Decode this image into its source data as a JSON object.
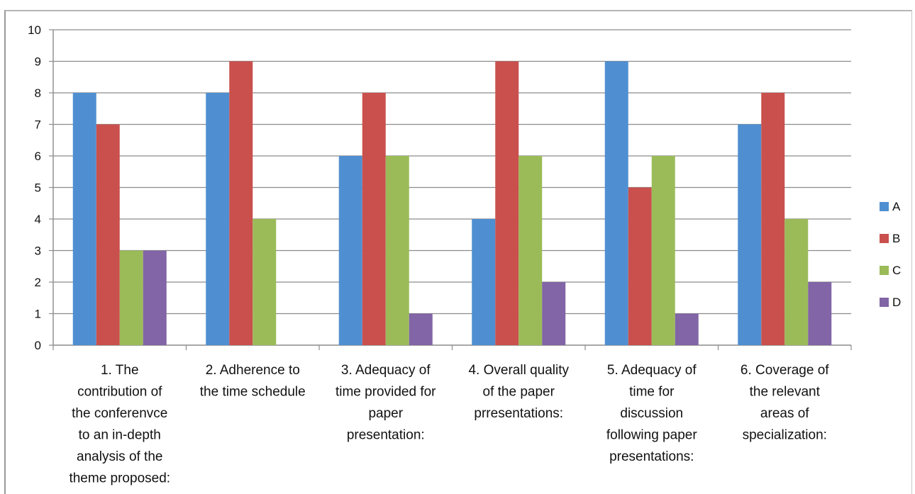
{
  "chart_data": {
    "type": "bar",
    "title": "",
    "xlabel": "",
    "ylabel": "",
    "ylim": [
      0,
      10
    ],
    "yticks": [
      "0",
      "1",
      "2",
      "3",
      "4",
      "5",
      "6",
      "7",
      "8",
      "9",
      "10"
    ],
    "grid": true,
    "legend_position": "right",
    "categories": [
      [
        "1. The",
        "contribution of",
        "the conferenvce",
        "to an in-depth",
        "analysis of the",
        "theme proposed:"
      ],
      [
        "2. Adherence to",
        "the time schedule"
      ],
      [
        "3. Adequacy of",
        "time provided for",
        "paper",
        "presentation:"
      ],
      [
        "4. Overall quality",
        "of the paper",
        "prresentations:"
      ],
      [
        "5. Adequacy of",
        "time for",
        "discussion",
        "following paper",
        "presentations:"
      ],
      [
        "6. Coverage of",
        "the relevant",
        "areas of",
        "specialization:"
      ]
    ],
    "series": [
      {
        "name": "A",
        "color": "#4f8fd1",
        "values": [
          8,
          8,
          6,
          4,
          9,
          7
        ]
      },
      {
        "name": "B",
        "color": "#c9504d",
        "values": [
          7,
          9,
          8,
          9,
          5,
          8
        ]
      },
      {
        "name": "C",
        "color": "#9bbb59",
        "values": [
          3,
          4,
          6,
          6,
          6,
          4
        ]
      },
      {
        "name": "D",
        "color": "#8165a6",
        "values": [
          3,
          0,
          1,
          2,
          1,
          2
        ]
      }
    ]
  }
}
